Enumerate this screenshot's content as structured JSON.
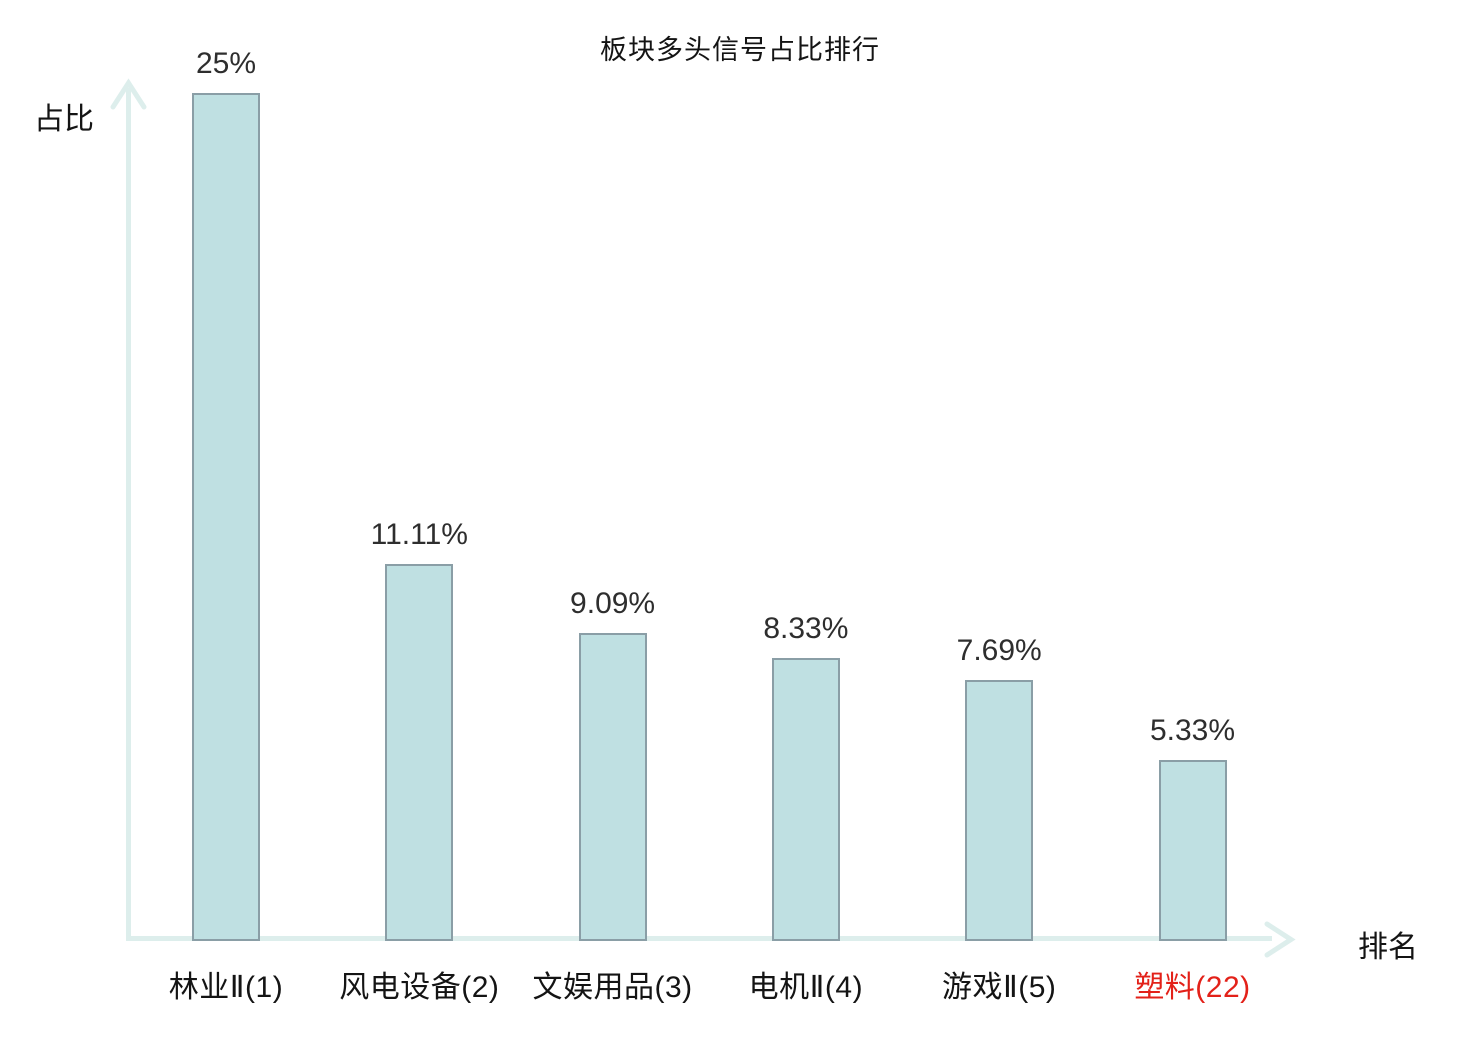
{
  "chart_data": {
    "type": "bar",
    "title": "板块多头信号占比排行",
    "xlabel": "排名",
    "ylabel": "占比",
    "categories": [
      "林业Ⅱ(1)",
      "风电设备(2)",
      "文娱用品(3)",
      "电机Ⅱ(4)",
      "游戏Ⅱ(5)",
      "塑料(22)"
    ],
    "values": [
      25,
      11.11,
      9.09,
      8.33,
      7.69,
      5.33
    ],
    "value_labels": [
      "25%",
      "11.11%",
      "9.09%",
      "8.33%",
      "7.69%",
      "5.33%"
    ],
    "ylim": [
      0,
      25
    ],
    "grid": false,
    "legend": false,
    "highlight_index": 5,
    "colors": {
      "bar_fill": "#bfe0e2",
      "bar_border": "#8a9ea6",
      "axis": "#ddeeec",
      "text": "#141414",
      "value_text": "#2e2e2e",
      "highlight_text": "#e32119"
    }
  }
}
